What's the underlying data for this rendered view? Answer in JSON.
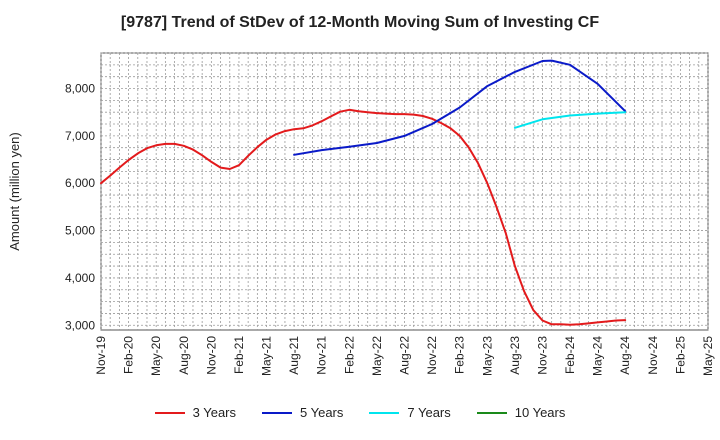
{
  "chart_data": {
    "type": "line",
    "title": "[9787]  Trend of StDev of 12-Month Moving Sum of Investing CF",
    "ylabel": "Amount (million yen)",
    "xlabel": "",
    "ylim": [
      2900,
      8750
    ],
    "yticks": [
      3000,
      4000,
      5000,
      6000,
      7000,
      8000
    ],
    "ytick_labels": [
      "3,000",
      "4,000",
      "5,000",
      "6,000",
      "7,000",
      "8,000"
    ],
    "xtick_labels": [
      "Nov-19",
      "Feb-20",
      "May-20",
      "Aug-20",
      "Nov-20",
      "Feb-21",
      "May-21",
      "Aug-21",
      "Nov-21",
      "Feb-22",
      "May-22",
      "Aug-22",
      "Nov-22",
      "Feb-23",
      "May-23",
      "Aug-23",
      "Nov-23",
      "Feb-24",
      "May-24",
      "Aug-24",
      "Nov-24",
      "Feb-25",
      "May-25"
    ],
    "x_start": "Nov-19",
    "grid": true,
    "legend_position": "bottom",
    "series": [
      {
        "name": "3 Years",
        "color": "#e31a1c",
        "x": [
          "Nov-19",
          "Dec-19",
          "Jan-20",
          "Feb-20",
          "Mar-20",
          "Apr-20",
          "May-20",
          "Jun-20",
          "Jul-20",
          "Aug-20",
          "Sep-20",
          "Oct-20",
          "Nov-20",
          "Dec-20",
          "Jan-21",
          "Feb-21",
          "Mar-21",
          "Apr-21",
          "May-21",
          "Jun-21",
          "Jul-21",
          "Aug-21",
          "Sep-21",
          "Oct-21",
          "Nov-21",
          "Dec-21",
          "Jan-22",
          "Feb-22",
          "Mar-22",
          "Apr-22",
          "May-22",
          "Jun-22",
          "Jul-22",
          "Aug-22",
          "Sep-22",
          "Oct-22",
          "Nov-22",
          "Dec-22",
          "Jan-23",
          "Feb-23",
          "Mar-23",
          "Apr-23",
          "May-23",
          "Jun-23",
          "Jul-23",
          "Aug-23",
          "Sep-23",
          "Oct-23",
          "Nov-23",
          "Dec-23",
          "Jan-24",
          "Feb-24",
          "Mar-24",
          "Apr-24",
          "May-24",
          "Jun-24",
          "Jul-24",
          "Aug-24"
        ],
        "values": [
          6000,
          6160,
          6330,
          6490,
          6630,
          6740,
          6800,
          6830,
          6830,
          6790,
          6710,
          6590,
          6450,
          6330,
          6300,
          6380,
          6580,
          6760,
          6920,
          7030,
          7100,
          7140,
          7160,
          7220,
          7310,
          7410,
          7510,
          7550,
          7520,
          7500,
          7480,
          7470,
          7460,
          7460,
          7450,
          7420,
          7360,
          7270,
          7160,
          7000,
          6750,
          6420,
          6000,
          5500,
          4950,
          4250,
          3720,
          3320,
          3100,
          3020,
          3020,
          3010,
          3020,
          3040,
          3060,
          3080,
          3100,
          3110
        ]
      },
      {
        "name": "5 Years",
        "color": "#0a1ac8",
        "x": [
          "Nov-21",
          "Feb-22",
          "May-22",
          "Aug-22",
          "Nov-22",
          "Feb-23",
          "May-23",
          "Aug-23",
          "Nov-23",
          "Dec-23",
          "Feb-24",
          "May-24",
          "Aug-24"
        ],
        "x_first": "Aug-21",
        "values_first": 6600,
        "values": [
          6700,
          6770,
          6850,
          7000,
          7250,
          7600,
          8050,
          8350,
          8580,
          8590,
          8500,
          8100,
          7520
        ]
      },
      {
        "name": "7 Years",
        "color": "#00e5ee",
        "x": [
          "Aug-23",
          "Nov-23",
          "Feb-24",
          "May-24",
          "Aug-24"
        ],
        "values": [
          7170,
          7350,
          7430,
          7470,
          7500
        ]
      },
      {
        "name": "10 Years",
        "color": "#1a8a1a",
        "x": [],
        "values": []
      }
    ]
  }
}
